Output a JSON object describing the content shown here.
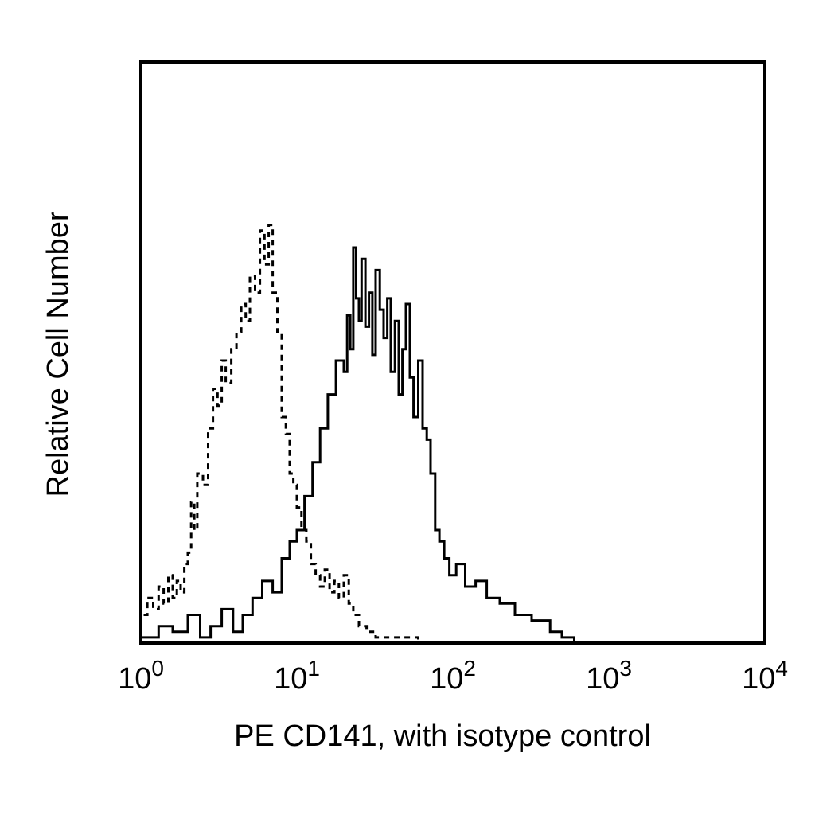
{
  "chart_data": {
    "type": "line",
    "title": "",
    "xlabel": "PE CD141, with isotype control",
    "ylabel": "Relative Cell Number",
    "x_scale": "log",
    "xlim": [
      1,
      10000
    ],
    "ylim": [
      0,
      100
    ],
    "grid": false,
    "x_ticks": [
      {
        "base": "10",
        "exp": "0",
        "value": 1
      },
      {
        "base": "10",
        "exp": "1",
        "value": 10
      },
      {
        "base": "10",
        "exp": "2",
        "value": 100
      },
      {
        "base": "10",
        "exp": "3",
        "value": 1000
      },
      {
        "base": "10",
        "exp": "4",
        "value": 10000
      }
    ],
    "series": [
      {
        "style": "dashed",
        "x": [
          1.0,
          1.1,
          1.2,
          1.3,
          1.4,
          1.5,
          1.6,
          1.7,
          1.8,
          1.9,
          2.0,
          2.1,
          2.2,
          2.3,
          2.5,
          2.7,
          2.9,
          3.1,
          3.3,
          3.5,
          3.8,
          4.1,
          4.4,
          4.7,
          5.0,
          5.4,
          5.8,
          6.2,
          6.6,
          7.0,
          7.5,
          8.0,
          8.5,
          9.0,
          9.5,
          10.0,
          10.7,
          11.5,
          12.3,
          13.2,
          14.1,
          15.1,
          16.2,
          17.4,
          18.6,
          20.0,
          21.5,
          23.0,
          25.0,
          28.0,
          32.0,
          40.0,
          60.0,
          100.0
        ],
        "y": [
          5,
          8,
          6,
          10,
          7,
          12,
          8,
          11,
          9,
          14,
          16,
          25,
          20,
          30,
          28,
          38,
          45,
          42,
          50,
          46,
          52,
          55,
          60,
          57,
          65,
          62,
          73,
          67,
          74,
          62,
          55,
          40,
          37,
          30,
          28,
          24,
          20,
          18,
          14,
          12,
          10,
          13,
          9,
          11,
          8,
          12,
          7,
          5,
          3,
          2,
          1,
          1,
          0,
          0
        ]
      },
      {
        "style": "solid",
        "x": [
          1.0,
          1.3,
          1.6,
          2.0,
          2.4,
          2.8,
          3.3,
          3.9,
          4.5,
          5.2,
          6.0,
          7.0,
          8.0,
          9.0,
          10.0,
          11.2,
          12.6,
          14.1,
          15.8,
          17.8,
          20.0,
          21.0,
          22.0,
          23.0,
          24.0,
          25.0,
          26.0,
          27.5,
          29.0,
          30.5,
          32.0,
          34.0,
          36.0,
          38.0,
          40.0,
          42.5,
          45.0,
          47.5,
          50.0,
          53.0,
          56.0,
          60.0,
          64.0,
          68.0,
          72.0,
          77.0,
          82.0,
          88.0,
          95.0,
          105.0,
          120.0,
          140.0,
          165.0,
          200.0,
          250.0,
          320.0,
          420.0,
          500.0,
          600.0
        ],
        "y": [
          1,
          3,
          2,
          5,
          1,
          3,
          6,
          2,
          5,
          8,
          11,
          9,
          15,
          18,
          20,
          26,
          32,
          38,
          44,
          50,
          48,
          58,
          52,
          70,
          61,
          57,
          68,
          56,
          62,
          51,
          66,
          59,
          54,
          61,
          48,
          57,
          44,
          52,
          60,
          47,
          40,
          50,
          38,
          36,
          30,
          20,
          18,
          15,
          12,
          14,
          10,
          11,
          8,
          7,
          5,
          4,
          2,
          1,
          0
        ]
      }
    ]
  }
}
